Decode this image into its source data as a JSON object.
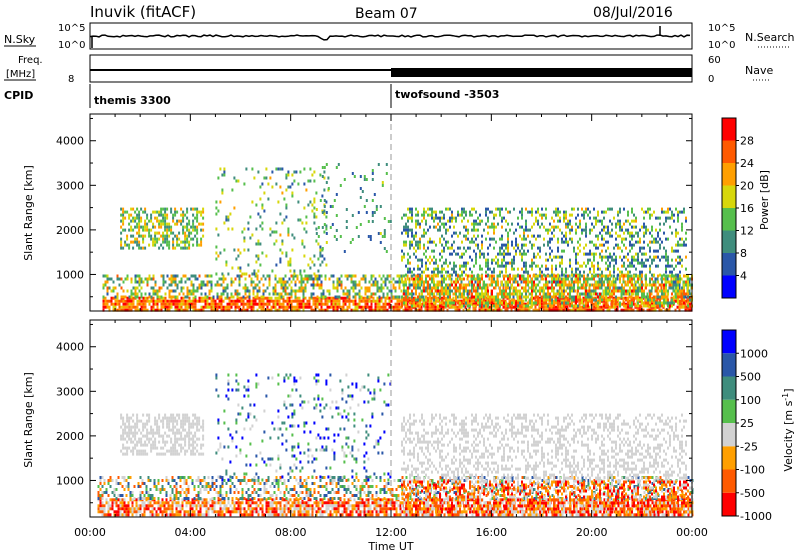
{
  "header": {
    "station": "Inuvik (fitACF)",
    "beam": "Beam 07",
    "date": "08/Jul/2016"
  },
  "strips": {
    "nsky_label": "N.Sky",
    "nsky_ticks": [
      "10^5",
      "10^0"
    ],
    "nsearch_label": "N.Search",
    "nsearch_ticks": [
      "10^5",
      "10^0"
    ],
    "freq_label_top": "Freq.",
    "freq_label_unit": "[MHz]",
    "freq_ticks": [
      "8"
    ],
    "nave_label": "Nave",
    "nave_ticks": [
      "60",
      "0"
    ],
    "cpid_label": "CPID",
    "programs": [
      {
        "name": "themis 3300",
        "start_hour": 0
      },
      {
        "name": "twofsound -3503",
        "start_hour": 12
      }
    ]
  },
  "chart_data": [
    {
      "type": "heatmap",
      "title": "",
      "xlabel": "Time UT",
      "ylabel": "Slant Range [km]",
      "colorbar_label": "Power [dB]",
      "x_ticks": [
        "00:00",
        "04:00",
        "08:00",
        "12:00",
        "16:00",
        "20:00",
        "00:00"
      ],
      "x_range_hours": [
        0,
        24
      ],
      "y_ticks": [
        1000,
        2000,
        3000,
        4000
      ],
      "y_range_km": [
        180,
        4600
      ],
      "colorbar_ticks": [
        "4",
        "8",
        "12",
        "16",
        "20",
        "24",
        "28"
      ],
      "colorbar_range": [
        0,
        31
      ],
      "colors": [
        "#0000ff",
        "#2a57a8",
        "#3f8d7d",
        "#56bf4c",
        "#d7d70b",
        "#ff9f00",
        "#ff5a00",
        "#ff0000"
      ],
      "program_change_hour": 12,
      "scatter_regions": [
        {
          "t": [
            0.5,
            24
          ],
          "r": [
            200,
            500
          ],
          "value_range": [
            18,
            31
          ],
          "density": 0.8
        },
        {
          "t": [
            0.5,
            24
          ],
          "r": [
            500,
            1000
          ],
          "value_range": [
            6,
            24
          ],
          "density": 0.45
        },
        {
          "t": [
            1.2,
            4.5
          ],
          "r": [
            1600,
            2500
          ],
          "value_range": [
            8,
            22
          ],
          "density": 0.5
        },
        {
          "t": [
            5.0,
            9.5
          ],
          "r": [
            1000,
            3400
          ],
          "value_range": [
            6,
            20
          ],
          "density": 0.12
        },
        {
          "t": [
            9.0,
            12
          ],
          "r": [
            1500,
            3500
          ],
          "value_range": [
            4,
            16
          ],
          "density": 0.08
        },
        {
          "t": [
            12.4,
            23.8
          ],
          "r": [
            1000,
            2500
          ],
          "value_range": [
            4,
            20
          ],
          "density": 0.35
        },
        {
          "t": [
            12.4,
            24
          ],
          "r": [
            300,
            1000
          ],
          "value_range": [
            10,
            28
          ],
          "density": 0.55
        }
      ]
    },
    {
      "type": "heatmap",
      "title": "",
      "xlabel": "Time UT",
      "ylabel": "Slant Range [km]",
      "colorbar_label": "Velocity [m s^-1]",
      "x_ticks": [
        "00:00",
        "04:00",
        "08:00",
        "12:00",
        "16:00",
        "20:00",
        "00:00"
      ],
      "x_range_hours": [
        0,
        24
      ],
      "y_ticks": [
        1000,
        2000,
        3000,
        4000
      ],
      "y_range_km": [
        180,
        4600
      ],
      "colorbar_ticks": [
        "1000",
        "500",
        "100",
        "25",
        "-25",
        "-100",
        "-500",
        "-1000"
      ],
      "colors": [
        "#ff0000",
        "#ff5a00",
        "#ff9f00",
        "#d2d2d2",
        "#56bf4c",
        "#3f8d7d",
        "#2a57a8",
        "#0000ff"
      ],
      "program_change_hour": 12,
      "scatter_regions": [
        {
          "t": [
            0.3,
            24
          ],
          "r": [
            200,
            600
          ],
          "class_range": [
            0,
            3
          ],
          "density": 0.75
        },
        {
          "t": [
            0.3,
            24
          ],
          "r": [
            600,
            1100
          ],
          "class_range": [
            1,
            6
          ],
          "density": 0.4
        },
        {
          "t": [
            1.2,
            4.5
          ],
          "r": [
            1600,
            2500
          ],
          "class_range": [
            3,
            3
          ],
          "density": 0.55
        },
        {
          "t": [
            5.0,
            12
          ],
          "r": [
            1000,
            3400
          ],
          "class_range": [
            3,
            7
          ],
          "density": 0.12
        },
        {
          "t": [
            12.4,
            23.8
          ],
          "r": [
            1000,
            2500
          ],
          "class_range": [
            3,
            3
          ],
          "density": 0.35
        },
        {
          "t": [
            12.4,
            24
          ],
          "r": [
            300,
            1000
          ],
          "class_range": [
            0,
            3
          ],
          "density": 0.5
        }
      ]
    }
  ]
}
